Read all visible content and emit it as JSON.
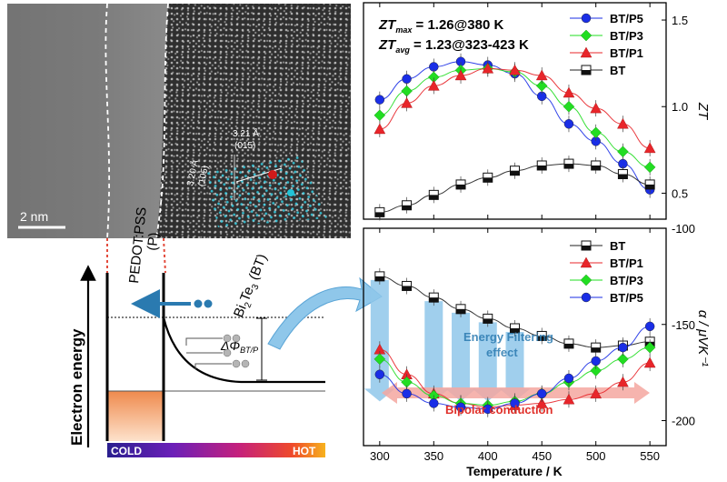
{
  "tem": {
    "scale_bar": "2 nm",
    "layer_pedot": "PEDOT:PSS",
    "layer_pedot_short": "(P)",
    "layer_bt_main": "Bi",
    "layer_bt_sub1": "2",
    "layer_bt_mid": "Te",
    "layer_bt_sub2": "3",
    "layer_bt_tail": " (BT)",
    "d1": "3.21 Å",
    "d1_plane": "(015)",
    "d2": "3.20 Å",
    "d2_plane": "(105)"
  },
  "band": {
    "ylabel": "Electron energy",
    "phi_main": "ΔΦ",
    "phi_sub": "BT/P",
    "cold": "COLD",
    "hot": "HOT"
  },
  "annotations": {
    "energy_filtering_line1": "Energy Filtering",
    "energy_filtering_line2": "effect",
    "bipolar": "Bipolar conduction"
  },
  "colors": {
    "bt": "#222222",
    "bt_p1": "#e8252a",
    "bt_p3": "#22dd22",
    "bt_p5": "#1a2ee6",
    "arrow_blue": "#8fc7ea",
    "bipolar_band": "#f5a7a0"
  },
  "chart_data": [
    {
      "type": "line",
      "ylabel": "ZT",
      "xlim": [
        285,
        565
      ],
      "ylim": [
        0.35,
        1.6
      ],
      "yticks": [
        0.5,
        1.0,
        1.5
      ],
      "ytick_labels": [
        "0.5",
        "1.0",
        "1.5"
      ],
      "xticks": [
        300,
        350,
        400,
        450,
        500,
        550
      ],
      "grid": false,
      "legend": "top-right",
      "annotation_line1": {
        "main": "ZT",
        "sub": "max",
        "rest": " = 1.26@380 K"
      },
      "annotation_line2": {
        "main": "ZT",
        "sub": "avg",
        "rest": " = 1.23@323-423 K"
      },
      "x": [
        300,
        325,
        350,
        375,
        400,
        425,
        450,
        475,
        500,
        525,
        550
      ],
      "series": [
        {
          "name": "BT/P5",
          "marker": "circle",
          "color": "#1a2ee6",
          "values": [
            1.04,
            1.16,
            1.23,
            1.26,
            1.24,
            1.19,
            1.06,
            0.9,
            0.8,
            0.67,
            0.52
          ]
        },
        {
          "name": "BT/P3",
          "marker": "diamond",
          "color": "#22dd22",
          "values": [
            0.95,
            1.09,
            1.17,
            1.21,
            1.22,
            1.2,
            1.12,
            1.0,
            0.85,
            0.74,
            0.65
          ]
        },
        {
          "name": "BT/P1",
          "marker": "triangle",
          "color": "#e8252a",
          "values": [
            0.87,
            1.02,
            1.12,
            1.18,
            1.22,
            1.21,
            1.18,
            1.08,
            0.99,
            0.9,
            0.76
          ]
        },
        {
          "name": "BT",
          "marker": "half-square",
          "color": "#222222",
          "values": [
            0.39,
            0.43,
            0.49,
            0.55,
            0.59,
            0.63,
            0.66,
            0.67,
            0.66,
            0.61,
            0.55
          ]
        }
      ]
    },
    {
      "type": "line",
      "ylabel": "α / μVK⁻¹",
      "xlabel": "Temperature / K",
      "xlim": [
        285,
        565
      ],
      "ylim": [
        -213,
        -100
      ],
      "yticks": [
        -100,
        -150,
        -200
      ],
      "ytick_labels": [
        "-100",
        "-150",
        "-200"
      ],
      "xticks": [
        300,
        350,
        400,
        450,
        500,
        550
      ],
      "xtick_labels": [
        "300",
        "350",
        "400",
        "450",
        "500",
        "550"
      ],
      "grid": false,
      "legend": "top-right",
      "x": [
        300,
        325,
        350,
        375,
        400,
        425,
        450,
        475,
        500,
        525,
        550
      ],
      "series": [
        {
          "name": "BT",
          "marker": "half-square",
          "color": "#222222",
          "values": [
            -125,
            -130,
            -136,
            -142,
            -147,
            -152,
            -156,
            -160,
            -162,
            -161,
            -159
          ]
        },
        {
          "name": "BT/P1",
          "marker": "triangle",
          "color": "#e8252a",
          "values": [
            -163,
            -176,
            -186,
            -191,
            -193,
            -192,
            -191,
            -189,
            -186,
            -180,
            -170
          ]
        },
        {
          "name": "BT/P3",
          "marker": "diamond",
          "color": "#22dd22",
          "values": [
            -168,
            -180,
            -187,
            -191,
            -192,
            -190,
            -186,
            -180,
            -174,
            -168,
            -162
          ]
        },
        {
          "name": "BT/P5",
          "marker": "circle",
          "color": "#1a2ee6",
          "values": [
            -176,
            -186,
            -191,
            -193,
            -194,
            -191,
            -186,
            -178,
            -169,
            -162,
            -151
          ]
        }
      ]
    }
  ]
}
